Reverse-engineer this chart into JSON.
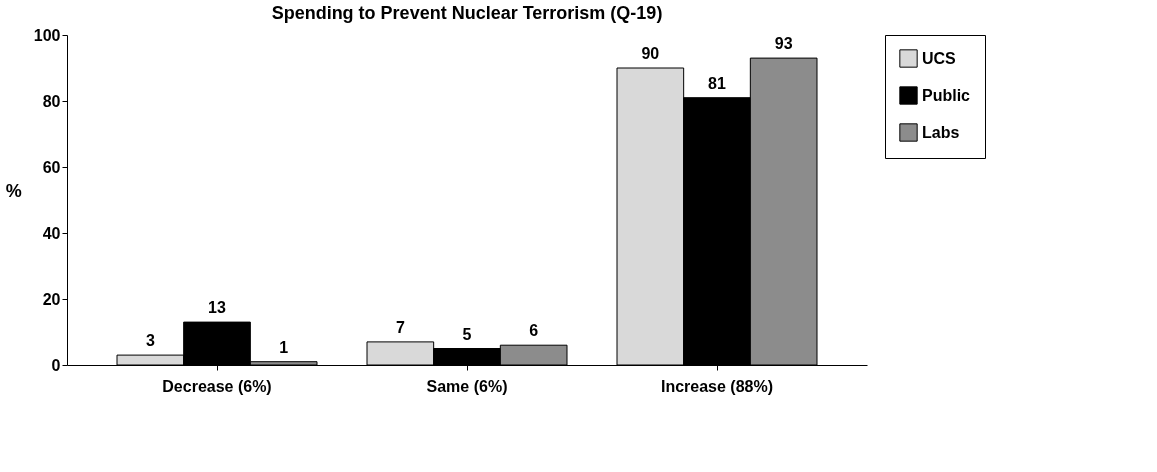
{
  "chart_data": {
    "type": "bar",
    "title": "Spending to Prevent Nuclear Terrorism  (Q-19)",
    "ylabel": "%",
    "categories": [
      "Decrease (6%)",
      "Same (6%)",
      "Increase (88%)"
    ],
    "series": [
      {
        "name": "UCS",
        "color": "#d9d9d9",
        "values": [
          3,
          7,
          90
        ]
      },
      {
        "name": "Public",
        "color": "#000000",
        "values": [
          13,
          5,
          81
        ]
      },
      {
        "name": "Labs",
        "color": "#8c8c8c",
        "values": [
          1,
          6,
          93
        ]
      }
    ],
    "ylim": [
      0,
      100
    ],
    "yticks": [
      0,
      20,
      40,
      60,
      80,
      100
    ],
    "grid": false,
    "legend": "right",
    "data_labels": true
  }
}
